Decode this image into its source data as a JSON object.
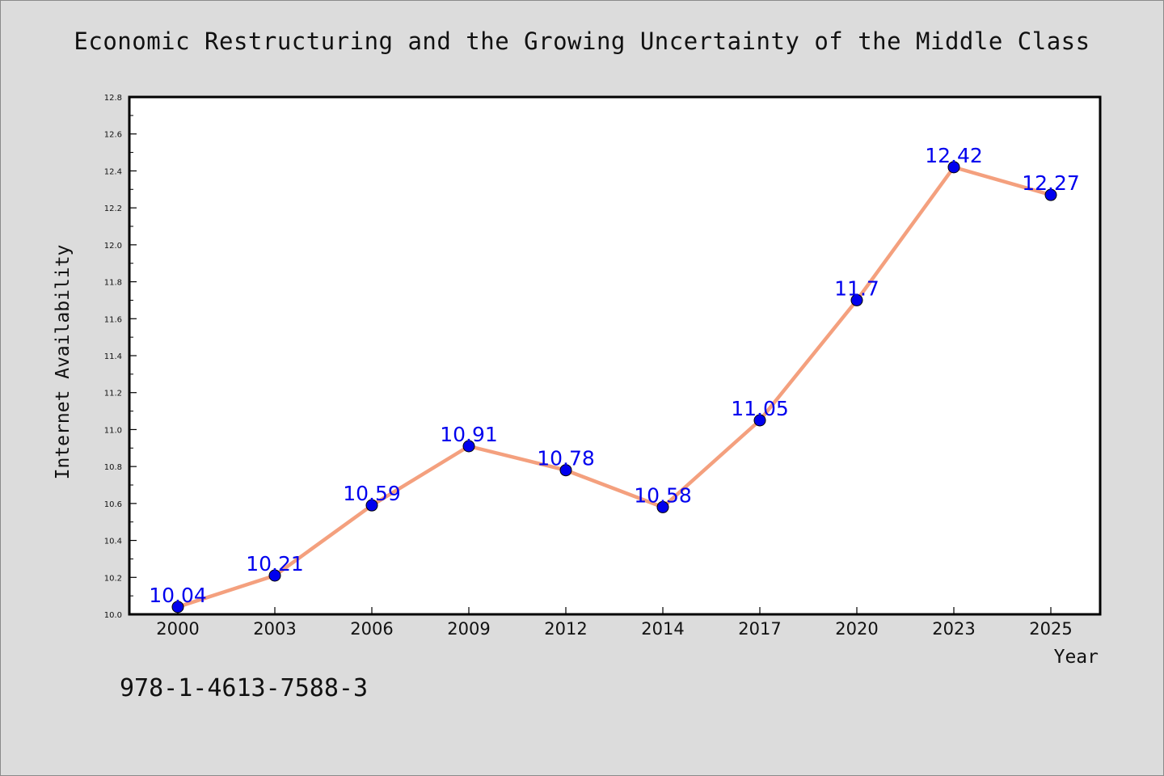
{
  "chart_data": {
    "type": "line",
    "title": "Economic Restructuring and the Growing Uncertainty of the Middle Class",
    "xlabel": "Year",
    "ylabel": "Internet Availability",
    "categories": [
      "2000",
      "2003",
      "2006",
      "2009",
      "2012",
      "2014",
      "2017",
      "2020",
      "2023",
      "2025"
    ],
    "series": [
      {
        "values": [
          10.04,
          10.21,
          10.59,
          10.91,
          10.78,
          10.58,
          11.05,
          11.7,
          12.42,
          12.27
        ],
        "data_labels": [
          "10.04",
          "10.21",
          "10.59",
          "10.91",
          "10.78",
          "10.58",
          "11.05",
          "11.7",
          "12.42",
          "12.27"
        ],
        "line_color": "#f4a07e",
        "marker_color": "#0000ee"
      }
    ],
    "ylim": [
      10.0,
      12.8
    ],
    "yticks": [
      "10.0",
      "10.2",
      "10.4",
      "10.6",
      "10.8",
      "11.0",
      "11.2",
      "11.4",
      "11.6",
      "11.8",
      "12.0",
      "12.2",
      "12.4",
      "12.6",
      "12.8"
    ],
    "grid": false,
    "legend": "none"
  },
  "footer": {
    "code": "978-1-4613-7588-3"
  }
}
